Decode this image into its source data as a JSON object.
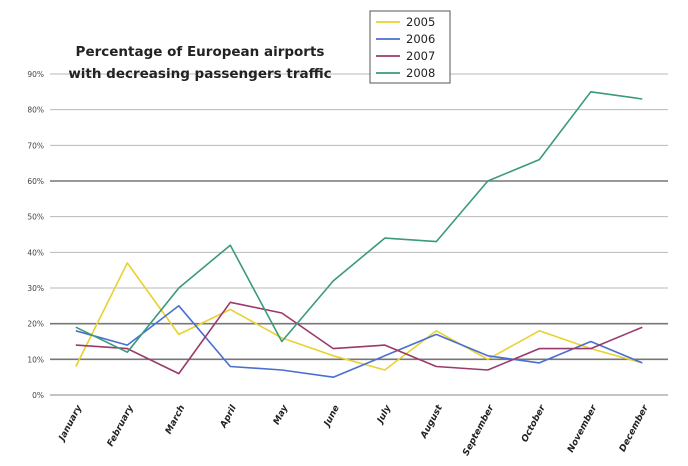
{
  "chart_data": {
    "type": "line",
    "title": "Percentage of European airports with decreasing passengers traffic",
    "title_lines": [
      "Percentage of European airports",
      "with decreasing passengers traffic"
    ],
    "xlabel": "",
    "ylabel": "",
    "categories": [
      "January",
      "February",
      "March",
      "April",
      "May",
      "June",
      "July",
      "August",
      "September",
      "October",
      "November",
      "December"
    ],
    "ylim": [
      0,
      90
    ],
    "yticks": [
      0,
      10,
      20,
      30,
      40,
      50,
      60,
      70,
      80,
      90
    ],
    "ytick_labels": [
      "0%",
      "10%",
      "20%",
      "30%",
      "40%",
      "50%",
      "60%",
      "70%",
      "80%",
      "90%"
    ],
    "grid": true,
    "legend_position": "top-right",
    "series": [
      {
        "name": "2005",
        "color": "#e8d230",
        "values": [
          8,
          37,
          17,
          24,
          16,
          11,
          7,
          18,
          10,
          18,
          13,
          9
        ]
      },
      {
        "name": "2006",
        "color": "#4a6fd0",
        "values": [
          18,
          14,
          25,
          8,
          7,
          5,
          11,
          17,
          11,
          9,
          15,
          9
        ]
      },
      {
        "name": "2007",
        "color": "#9a3a6a",
        "values": [
          14,
          13,
          6,
          26,
          23,
          13,
          14,
          8,
          7,
          13,
          13,
          19
        ]
      },
      {
        "name": "2008",
        "color": "#3a9a7a",
        "values": [
          19,
          12,
          30,
          42,
          15,
          32,
          44,
          43,
          60,
          66,
          85,
          83
        ]
      }
    ]
  }
}
